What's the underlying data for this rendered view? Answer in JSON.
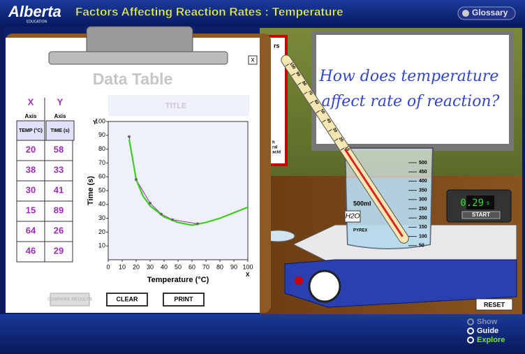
{
  "header": {
    "logo": "Alberta",
    "logo_sub": "EDUCATION",
    "title": "Factors Affecting Reaction Rates : Temperature",
    "glossary": "Glossary"
  },
  "data_table": {
    "title": "Data Table",
    "close": "x",
    "columns": [
      {
        "var": "X",
        "axis": "Axis",
        "label": "TEMP (°C)"
      },
      {
        "var": "Y",
        "axis": "Axis",
        "label": "TIME (s)"
      }
    ],
    "rows": [
      [
        20,
        58
      ],
      [
        38,
        33
      ],
      [
        30,
        41
      ],
      [
        15,
        89
      ],
      [
        64,
        26
      ],
      [
        46,
        29
      ]
    ]
  },
  "graph": {
    "title_placeholder": "TITLE",
    "x_letter": "X",
    "y_letter": "Y",
    "x_label": "Temperature (°C)",
    "y_label": "Time (s)",
    "xlim": [
      0,
      100
    ],
    "ylim": [
      0,
      100
    ],
    "xticks": [
      0,
      10,
      20,
      30,
      40,
      50,
      60,
      70,
      80,
      90,
      100
    ],
    "yticks": [
      10,
      20,
      30,
      40,
      50,
      60,
      70,
      80,
      90,
      100
    ],
    "points": {
      "color": "#9b2fb5",
      "x": [
        15,
        20,
        30,
        38,
        46,
        64
      ],
      "y": [
        89,
        58,
        41,
        33,
        29,
        26
      ]
    },
    "fit": {
      "color": "#3ccf22",
      "x": [
        15,
        18,
        20,
        25,
        30,
        40,
        50,
        60,
        70,
        80,
        90,
        100
      ],
      "y": [
        87,
        70,
        58,
        46,
        39,
        31,
        27,
        25,
        27,
        30,
        34,
        38
      ]
    }
  },
  "buttons": {
    "compare": "COMPARE RESULTS",
    "clear": "CLEAR",
    "print": "PRINT",
    "reset": "RESET"
  },
  "poster": [
    "rs",
    "h",
    "ral",
    "acid"
  ],
  "whiteboard": [
    "How does temperature",
    "affect rate of reaction?"
  ],
  "thermometer_ticks": [
    100,
    90,
    80,
    70,
    60,
    50,
    40,
    30,
    20,
    10
  ],
  "beaker": {
    "size": "500ml",
    "contents": "H2O",
    "brand": "PYREX",
    "graduations": [
      500,
      450,
      400,
      350,
      300,
      250,
      200,
      150,
      100,
      50
    ]
  },
  "timer": {
    "display": "0.29",
    "unit": "s",
    "start": "START"
  },
  "nav": [
    "Show",
    "Guide",
    "Explore"
  ]
}
